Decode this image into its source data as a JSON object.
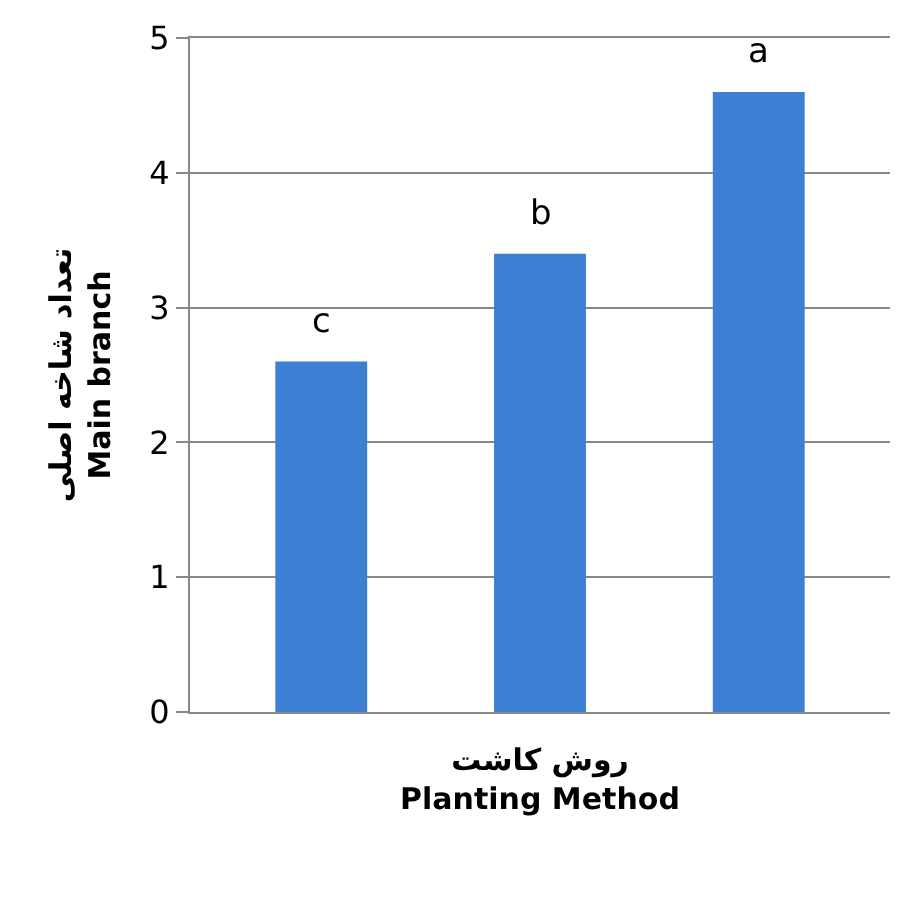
{
  "chart_data": {
    "type": "bar",
    "categories": [
      null,
      null,
      null
    ],
    "values": [
      2.6,
      3.4,
      4.6
    ],
    "color": "#3d7fd3",
    "ylabel": "تعداد شاخه اصلی\nMain branch",
    "xlabel": "روش کاشت\nPlanting Method",
    "annotations": [
      {
        "text": "c",
        "y": 2.6
      },
      {
        "text": "b",
        "y": 3.4
      },
      {
        "text": "a",
        "y": 4.6
      }
    ],
    "ylim": [
      0,
      5
    ],
    "yticks": [
      0,
      1,
      2,
      3,
      4,
      5
    ],
    "grid": "y"
  }
}
